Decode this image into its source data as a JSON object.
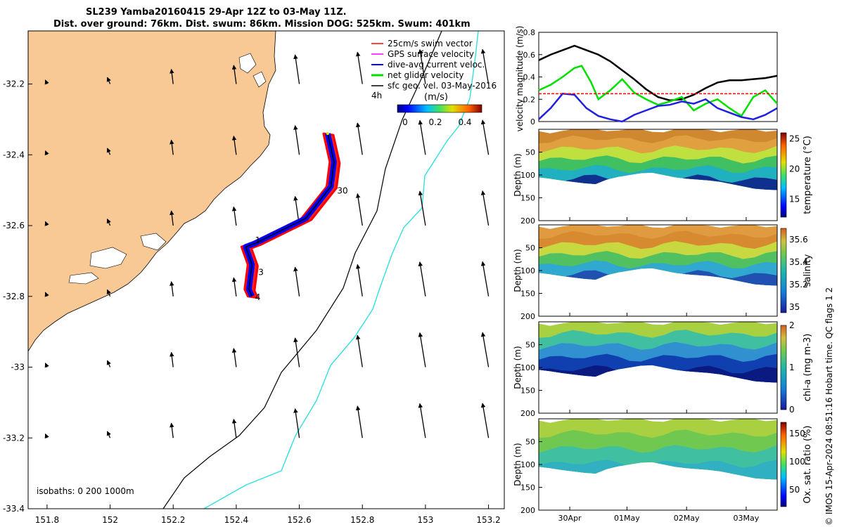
{
  "header": {
    "line1": "SL239 Yamba20160415 29-Apr 12Z to 03-May 11Z.",
    "line2": "Dist. over ground: 76km. Dist. swum: 86km. Mission DOG: 525km. Swum: 401km"
  },
  "credit": "© IMOS 15-Apr-2024 08:51:16 Hobart time. QC flags 1  2",
  "colors": {
    "land": "#f9c995",
    "swim_vector": "#ff0000",
    "gps_velocity": "#ff00ff",
    "current_velocity": "#0000ff",
    "net_velocity": "#00e000",
    "sfc_vel": "#000000",
    "isobath_200": "#000000",
    "isobath_1000": "#30e0e0"
  },
  "chart_data": [
    {
      "type": "map",
      "id": "track_map",
      "xticks": [
        "151.8",
        "152",
        "152.2",
        "152.4",
        "152.6",
        "152.8",
        "153",
        "153.2"
      ],
      "yticks": [
        "-32.2",
        "-32.4",
        "-32.6",
        "-32.8",
        "-33",
        "-33.2",
        "-33.4"
      ],
      "xlim": [
        151.74,
        153.25
      ],
      "ylim": [
        -33.4,
        -32.05
      ],
      "legend": {
        "position": "top-right",
        "entries": [
          "25cm/s swim vector",
          "GPS surface velocity",
          "dive-avg current veloc.",
          "net glider velocity",
          "sfc geo. vel. 03-May-2016"
        ]
      },
      "interval_label": "4h",
      "colorbar": {
        "label": "(m/s)",
        "ticks": [
          "0",
          "0.2",
          "0.4"
        ],
        "range": [
          0,
          0.5
        ]
      },
      "isobaths_label": "isobaths: 0   200  1000m",
      "track": [
        {
          "lon": 152.69,
          "lat": -32.34
        },
        {
          "lon": 152.71,
          "lat": -32.42
        },
        {
          "lon": 152.7,
          "lat": -32.49
        },
        {
          "lon": 152.62,
          "lat": -32.58
        },
        {
          "lon": 152.46,
          "lat": -32.65
        },
        {
          "lon": 152.43,
          "lat": -32.66
        },
        {
          "lon": 152.45,
          "lat": -32.71
        },
        {
          "lon": 152.44,
          "lat": -32.78
        },
        {
          "lon": 152.45,
          "lat": -32.8
        }
      ],
      "track_labels": [
        {
          "text": "30",
          "lon": 152.72,
          "lat": -32.51
        },
        {
          "text": "1",
          "lon": 152.46,
          "lat": -32.65
        },
        {
          "text": "3",
          "lon": 152.47,
          "lat": -32.74
        },
        {
          "text": "4",
          "lon": 152.46,
          "lat": -32.81
        }
      ]
    },
    {
      "type": "line",
      "id": "velocity",
      "ylabel": "velocity magnitude (m/s)",
      "yticks": [
        "0",
        "0.2",
        "0.4",
        "0.6",
        "0.8"
      ],
      "ylim": [
        0,
        0.8
      ],
      "xlim": [
        0,
        1
      ],
      "series": [
        {
          "color": "#000000",
          "x": [
            0,
            0.05,
            0.1,
            0.15,
            0.2,
            0.25,
            0.3,
            0.35,
            0.4,
            0.45,
            0.5,
            0.55,
            0.6,
            0.65,
            0.7,
            0.75,
            0.8,
            0.85,
            0.9,
            0.95,
            1.0
          ],
          "values": [
            0.55,
            0.6,
            0.64,
            0.68,
            0.64,
            0.6,
            0.54,
            0.46,
            0.38,
            0.29,
            0.22,
            0.19,
            0.2,
            0.24,
            0.3,
            0.35,
            0.37,
            0.37,
            0.38,
            0.39,
            0.41
          ]
        },
        {
          "color": "#00e000",
          "x": [
            0,
            0.05,
            0.1,
            0.15,
            0.18,
            0.22,
            0.25,
            0.3,
            0.35,
            0.4,
            0.45,
            0.5,
            0.55,
            0.6,
            0.65,
            0.7,
            0.75,
            0.8,
            0.85,
            0.9,
            0.95,
            1.0
          ],
          "values": [
            0.28,
            0.33,
            0.4,
            0.48,
            0.5,
            0.35,
            0.2,
            0.28,
            0.38,
            0.26,
            0.2,
            0.15,
            0.18,
            0.22,
            0.1,
            0.16,
            0.2,
            0.12,
            0.05,
            0.22,
            0.28,
            0.16
          ]
        },
        {
          "color": "#2020e0",
          "x": [
            0,
            0.05,
            0.1,
            0.15,
            0.2,
            0.25,
            0.3,
            0.35,
            0.4,
            0.45,
            0.5,
            0.55,
            0.6,
            0.65,
            0.7,
            0.75,
            0.8,
            0.85,
            0.9,
            0.95,
            1.0
          ],
          "values": [
            0.02,
            0.12,
            0.25,
            0.24,
            0.12,
            0.05,
            0.02,
            0.0,
            0.06,
            0.1,
            0.14,
            0.15,
            0.18,
            0.16,
            0.2,
            0.12,
            0.08,
            0.04,
            0.02,
            0.06,
            0.12
          ]
        },
        {
          "color": "#ff0000",
          "dashed": true,
          "x": [
            0,
            1
          ],
          "values": [
            0.25,
            0.25
          ]
        }
      ]
    },
    {
      "type": "heatmap",
      "id": "temperature",
      "ylabel": "Depth (m)",
      "yticks": [
        "50",
        "100",
        "150",
        "200"
      ],
      "ylim": [
        200,
        0
      ],
      "clabel": "temperature (°C)",
      "cticks": [
        "15",
        "20",
        "25"
      ],
      "crange": [
        12,
        26
      ],
      "xticks": [
        "30Apr",
        "01May",
        "02May",
        "03May"
      ],
      "layers": [
        "#d08830",
        "#e0a040",
        "#c0e040",
        "#40c060",
        "#20b0c0",
        "#103090"
      ],
      "bottom_profile": [
        105,
        108,
        112,
        115,
        118,
        120,
        110,
        104,
        100,
        96,
        95,
        100,
        105,
        108,
        110,
        112,
        115,
        120,
        125,
        130,
        132,
        133
      ]
    },
    {
      "type": "heatmap",
      "id": "salinity",
      "ylabel": "Depth (m)",
      "yticks": [
        "50",
        "100",
        "150",
        "200"
      ],
      "ylim": [
        200,
        0
      ],
      "clabel": "salinity",
      "cticks": [
        "35",
        "35.2",
        "35.4",
        "35.6"
      ],
      "crange": [
        34.95,
        35.7
      ],
      "xticks": [
        "30Apr",
        "01May",
        "02May",
        "03May"
      ],
      "layers": [
        "#e09a40",
        "#d88a30",
        "#c8d840",
        "#50c060",
        "#30a8d0",
        "#2050b0"
      ],
      "bottom_profile": [
        105,
        108,
        112,
        115,
        118,
        120,
        110,
        104,
        100,
        96,
        95,
        100,
        105,
        108,
        110,
        112,
        115,
        120,
        125,
        130,
        132,
        133
      ]
    },
    {
      "type": "heatmap",
      "id": "chla",
      "ylabel": "Depth (m)",
      "yticks": [
        "50",
        "100",
        "150",
        "200"
      ],
      "ylim": [
        200,
        0
      ],
      "clabel": "chl-a (mg m-3)",
      "cticks": [
        "0",
        "1",
        "2"
      ],
      "crange": [
        0,
        2
      ],
      "xticks": [
        "30Apr",
        "01May",
        "02May",
        "03May"
      ],
      "layers": [
        "#a8d040",
        "#40c0a0",
        "#3090d0",
        "#1040b0",
        "#0a1a80"
      ],
      "bottom_profile": [
        105,
        108,
        112,
        115,
        118,
        120,
        110,
        104,
        100,
        96,
        95,
        100,
        105,
        108,
        110,
        112,
        115,
        120,
        125,
        130,
        132,
        133
      ]
    },
    {
      "type": "heatmap",
      "id": "oxygen",
      "ylabel": "Depth (m)",
      "yticks": [
        "50",
        "100",
        "150",
        "200"
      ],
      "ylim": [
        200,
        0
      ],
      "clabel": "Ox. sat. ratio (%)",
      "cticks": [
        "50",
        "100",
        "150"
      ],
      "crange": [
        20,
        170
      ],
      "xticks": [
        "30Apr",
        "01May",
        "02May",
        "03May"
      ],
      "layers": [
        "#a8d040",
        "#70c850",
        "#40c0a0",
        "#30b0c0"
      ],
      "bottom_profile": [
        105,
        108,
        112,
        115,
        118,
        120,
        110,
        104,
        100,
        96,
        95,
        100,
        105,
        108,
        110,
        112,
        115,
        120,
        125,
        130,
        132,
        133
      ]
    }
  ]
}
